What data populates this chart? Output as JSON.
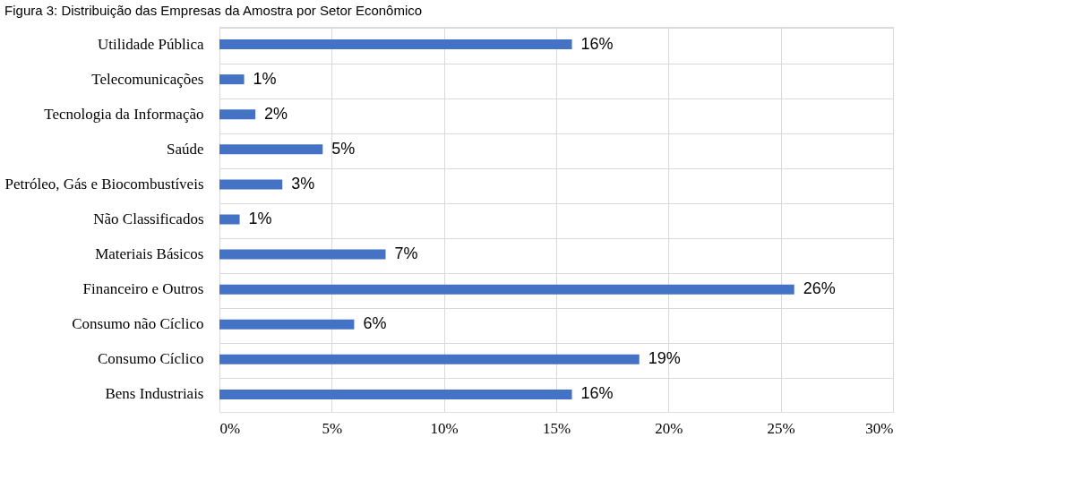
{
  "chart_data": {
    "type": "bar",
    "orientation": "horizontal",
    "title": "Figura 3: Distribuição das Empresas da Amostra por Setor Econômico",
    "categories": [
      "Utilidade Pública",
      "Telecomunicações",
      "Tecnologia da Informação",
      "Saúde",
      "Petróleo, Gás e Biocombustíveis",
      "Não Classificados",
      "Materiais Básicos",
      "Financeiro e Outros",
      "Consumo não Cíclico",
      "Consumo Cíclico",
      "Bens Industriais"
    ],
    "values": [
      15.7,
      1.1,
      1.6,
      4.6,
      2.8,
      0.9,
      7.4,
      25.6,
      6.0,
      18.7,
      15.7
    ],
    "value_labels": [
      "16%",
      "1%",
      "2%",
      "5%",
      "3%",
      "1%",
      "7%",
      "26%",
      "6%",
      "19%",
      "16%"
    ],
    "color": "#4472c4",
    "xlim": [
      0,
      30
    ],
    "xticks": [
      {
        "value": 0,
        "label": "0%"
      },
      {
        "value": 5,
        "label": "5%"
      },
      {
        "value": 10,
        "label": "10%"
      },
      {
        "value": 15,
        "label": "15%"
      },
      {
        "value": 20,
        "label": "20%"
      },
      {
        "value": 25,
        "label": "25%"
      },
      {
        "value": 30,
        "label": "30%"
      }
    ],
    "grid": true
  }
}
